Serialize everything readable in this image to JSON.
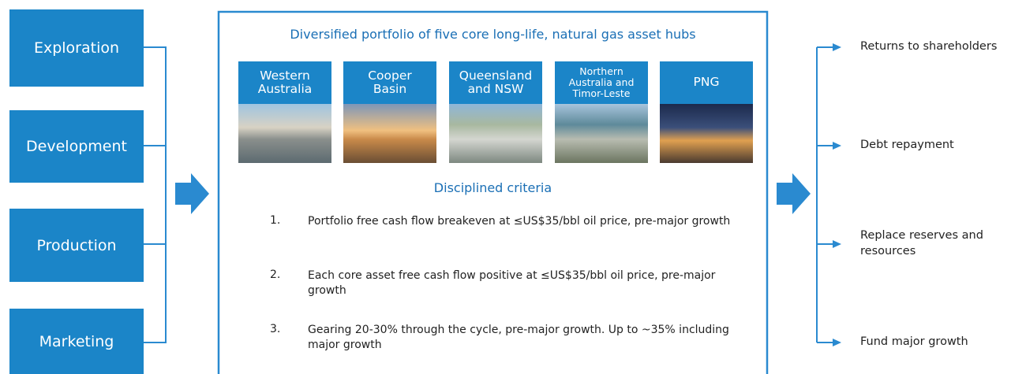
{
  "left": {
    "items": [
      "Exploration",
      "Development",
      "Production",
      "Marketing"
    ]
  },
  "center": {
    "title": "Diversified portfolio of five core long-life, natural gas asset hubs",
    "regions": [
      [
        "Western",
        "Australia"
      ],
      [
        "Cooper",
        "Basin"
      ],
      [
        "Queensland",
        "and NSW"
      ],
      [
        "Northern",
        "Australia and",
        "Timor-Leste"
      ],
      [
        "PNG"
      ]
    ],
    "criteria": {
      "heading": "Disciplined criteria",
      "items": [
        {
          "number": "1.",
          "text": "Portfolio free cash flow breakeven at ≤US$35/bbl oil price, pre-major growth"
        },
        {
          "number": "2.",
          "text": "Each core asset free cash flow positive at ≤US$35/bbl oil price, pre-major growth"
        },
        {
          "number": "3.",
          "text": "Gearing 20-30% through the cycle, pre-major growth. Up to ~35% including major growth"
        }
      ]
    }
  },
  "right": {
    "items": [
      "Returns to shareholders",
      "Debt repayment",
      "Replace reserves and resources",
      "Fund major growth"
    ]
  }
}
